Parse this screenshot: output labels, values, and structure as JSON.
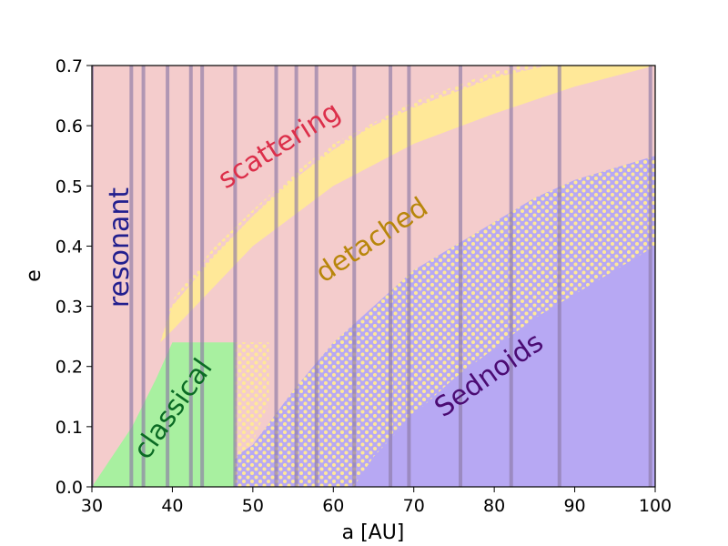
{
  "chart_data": {
    "type": "area",
    "xlabel": "a [AU]",
    "ylabel": "e",
    "xlim": [
      30,
      100
    ],
    "ylim": [
      0,
      0.7
    ],
    "xticks": [
      "30",
      "40",
      "50",
      "60",
      "70",
      "80",
      "90",
      "100"
    ],
    "yticks": [
      "0.0",
      "0.1",
      "0.2",
      "0.3",
      "0.4",
      "0.5",
      "0.6",
      "0.7"
    ],
    "grid": false,
    "resonance_lines_a": [
      30.0,
      34.9,
      36.4,
      39.4,
      42.3,
      43.7,
      47.8,
      52.9,
      55.4,
      57.9,
      62.6,
      67.1,
      69.4,
      75.8,
      82.1,
      88.1,
      99.4
    ],
    "regions": [
      {
        "name": "scattering",
        "fill_color": "#f4cccc",
        "label_color": "#dc2f4a"
      },
      {
        "name": "detached",
        "fill_color": "#ffe898",
        "label_color": "#b8860b",
        "lower_boundary": [
          [
            38.5,
            0.24
          ],
          [
            40,
            0.26
          ],
          [
            45,
            0.33
          ],
          [
            50,
            0.4
          ],
          [
            55,
            0.45
          ],
          [
            60,
            0.5
          ],
          [
            70,
            0.57
          ],
          [
            80,
            0.62
          ],
          [
            90,
            0.665
          ],
          [
            100,
            0.7
          ]
        ]
      },
      {
        "name": "classical",
        "fill_color": "#a8f0a0",
        "label_color": "#0b6b24",
        "box": {
          "a_max": 47.8,
          "e_max": 0.24
        },
        "lower_boundary": [
          [
            30,
            0.0
          ],
          [
            32,
            0.04
          ],
          [
            35,
            0.1
          ],
          [
            38,
            0.18
          ],
          [
            40,
            0.24
          ]
        ]
      },
      {
        "name": "Sednoids",
        "fill_color": "#b7a8f3",
        "label_color": "#4b0b73",
        "boundary": [
          [
            47.8,
            0.05
          ],
          [
            50,
            0.07
          ],
          [
            55,
            0.16
          ],
          [
            60,
            0.24
          ],
          [
            65,
            0.3
          ],
          [
            70,
            0.36
          ],
          [
            75,
            0.4
          ],
          [
            80,
            0.44
          ],
          [
            85,
            0.48
          ],
          [
            90,
            0.51
          ],
          [
            95,
            0.53
          ],
          [
            100,
            0.55
          ]
        ],
        "inner_boundary": [
          [
            62.5,
            0.0
          ],
          [
            65,
            0.05
          ],
          [
            70,
            0.12
          ],
          [
            75,
            0.18
          ],
          [
            80,
            0.23
          ],
          [
            85,
            0.28
          ],
          [
            90,
            0.32
          ],
          [
            95,
            0.36
          ],
          [
            100,
            0.4
          ]
        ]
      },
      {
        "name": "resonant",
        "label_color": "#221f8e"
      }
    ]
  }
}
